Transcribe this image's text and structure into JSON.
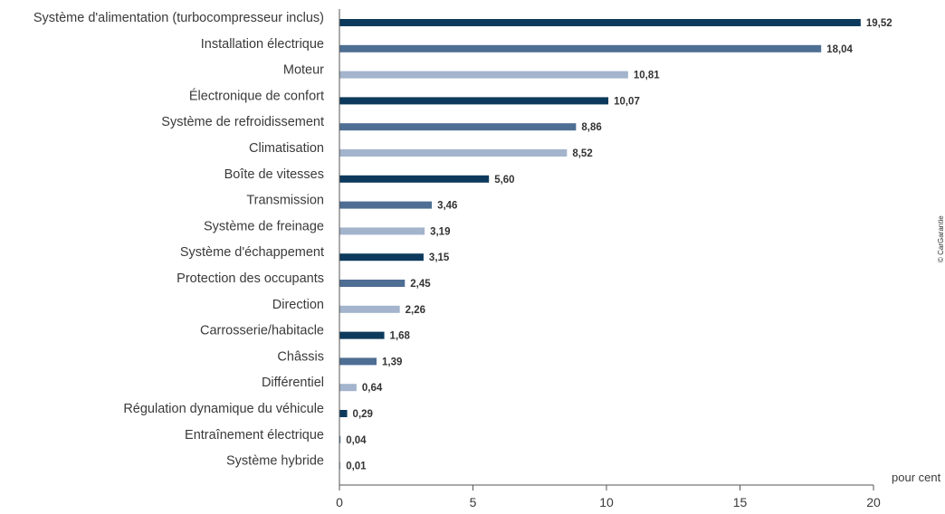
{
  "chart_data": {
    "type": "bar",
    "orientation": "horizontal",
    "categories": [
      "Système d'alimentation (turbocompresseur inclus)",
      "Installation électrique",
      "Moteur",
      "Électronique de confort",
      "Système de refroidissement",
      "Climatisation",
      "Boîte de vitesses",
      "Transmission",
      "Système de freinage",
      "Système d'échappement",
      "Protection des occupants",
      "Direction",
      "Carrosserie/habitacle",
      "Châssis",
      "Différentiel",
      "Régulation dynamique du véhicule",
      "Entraînement électrique",
      "Système hybride"
    ],
    "values": [
      19.52,
      18.04,
      10.81,
      10.07,
      8.86,
      8.52,
      5.6,
      3.46,
      3.19,
      3.15,
      2.45,
      2.26,
      1.68,
      1.39,
      0.64,
      0.29,
      0.04,
      0.01
    ],
    "value_labels": [
      "19,52",
      "18,04",
      "10,81",
      "10,07",
      "8,86",
      "8,52",
      "5,60",
      "3,46",
      "3,19",
      "3,15",
      "2,45",
      "2,26",
      "1,68",
      "1,39",
      "0,64",
      "0,29",
      "0,04",
      "0,01"
    ],
    "xlim": [
      0,
      20
    ],
    "xticks": [
      0,
      5,
      10,
      15,
      20
    ],
    "xtick_labels": [
      "0",
      "5",
      "10",
      "15",
      "20"
    ],
    "xlabel": "pour cent",
    "ylabel": "",
    "title": "",
    "grid": false,
    "bar_colors": [
      "#0d3a5c",
      "#4e6e93",
      "#a3b4cc"
    ],
    "credit": "© CarGarantie"
  }
}
